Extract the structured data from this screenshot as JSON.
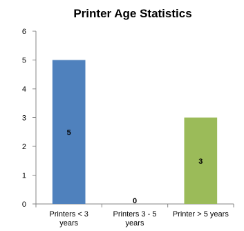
{
  "chart_data": {
    "type": "bar",
    "title": "Printer Age Statistics",
    "categories": [
      [
        "Printers < 3",
        "years"
      ],
      [
        "Printers 3 - 5",
        "years"
      ],
      [
        "Printer > 5 years"
      ]
    ],
    "values": [
      5,
      0,
      3
    ],
    "data_labels": [
      "5",
      "0",
      "3"
    ],
    "bar_colors": [
      "#4f81bd",
      "#c0504d",
      "#9bbb59"
    ],
    "ylim": [
      0,
      6
    ],
    "yticks": [
      0,
      1,
      2,
      3,
      4,
      5,
      6
    ],
    "grid": false,
    "legend": "none",
    "xlabel": "",
    "ylabel": ""
  }
}
